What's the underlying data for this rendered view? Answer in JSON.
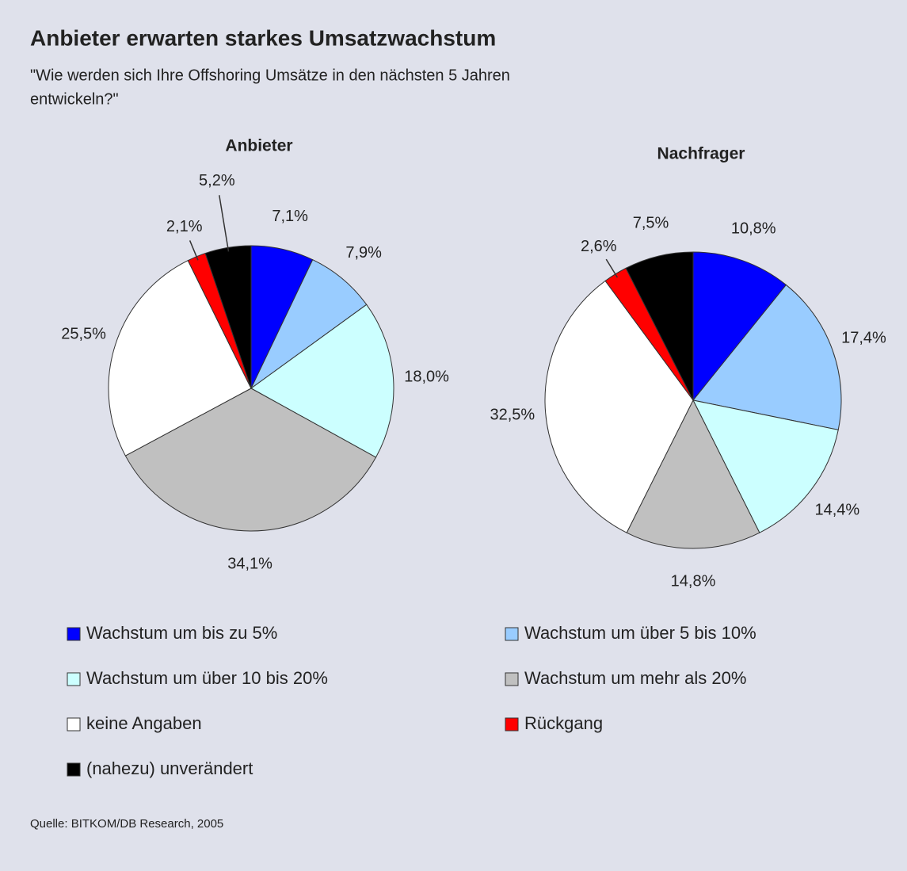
{
  "title": "Anbieter erwarten starkes Umsatzwachstum",
  "subtitle": [
    "\"Wie werden sich Ihre Offshoring Umsätze in den nächsten 5 Jahren",
    "entwickeln?\""
  ],
  "legend": {
    "labels": [
      "Wachstum um bis zu 5%",
      "Wachstum um über 5 bis 10%",
      "Wachstum um über 10 bis 20%",
      "Wachstum um mehr als 20%",
      "keine Angaben",
      "Rückgang",
      "(nahezu) unverändert"
    ],
    "colors": [
      "#0000ff",
      "#99ccff",
      "#ccffff",
      "#c0c0c0",
      "#ffffff",
      "#ff0000",
      "#000000"
    ]
  },
  "chart_data": [
    {
      "type": "pie",
      "title": "Anbieter",
      "values": [
        7.1,
        7.9,
        18.0,
        34.1,
        25.5,
        2.1,
        5.2
      ],
      "value_labels": [
        "7,1%",
        "7,9%",
        "18,0%",
        "34,1%",
        "25,5%",
        "2,1%",
        "5,2%"
      ]
    },
    {
      "type": "pie",
      "title": "Nachfrager",
      "values": [
        10.8,
        17.4,
        14.4,
        14.8,
        32.5,
        2.6,
        7.5
      ],
      "value_labels": [
        "10,8%",
        "17,4%",
        "14,4%",
        "14,8%",
        "32,5%",
        "2,6%",
        "7,5%"
      ]
    }
  ],
  "source": "Quelle: BITKOM/DB Research, 2005"
}
